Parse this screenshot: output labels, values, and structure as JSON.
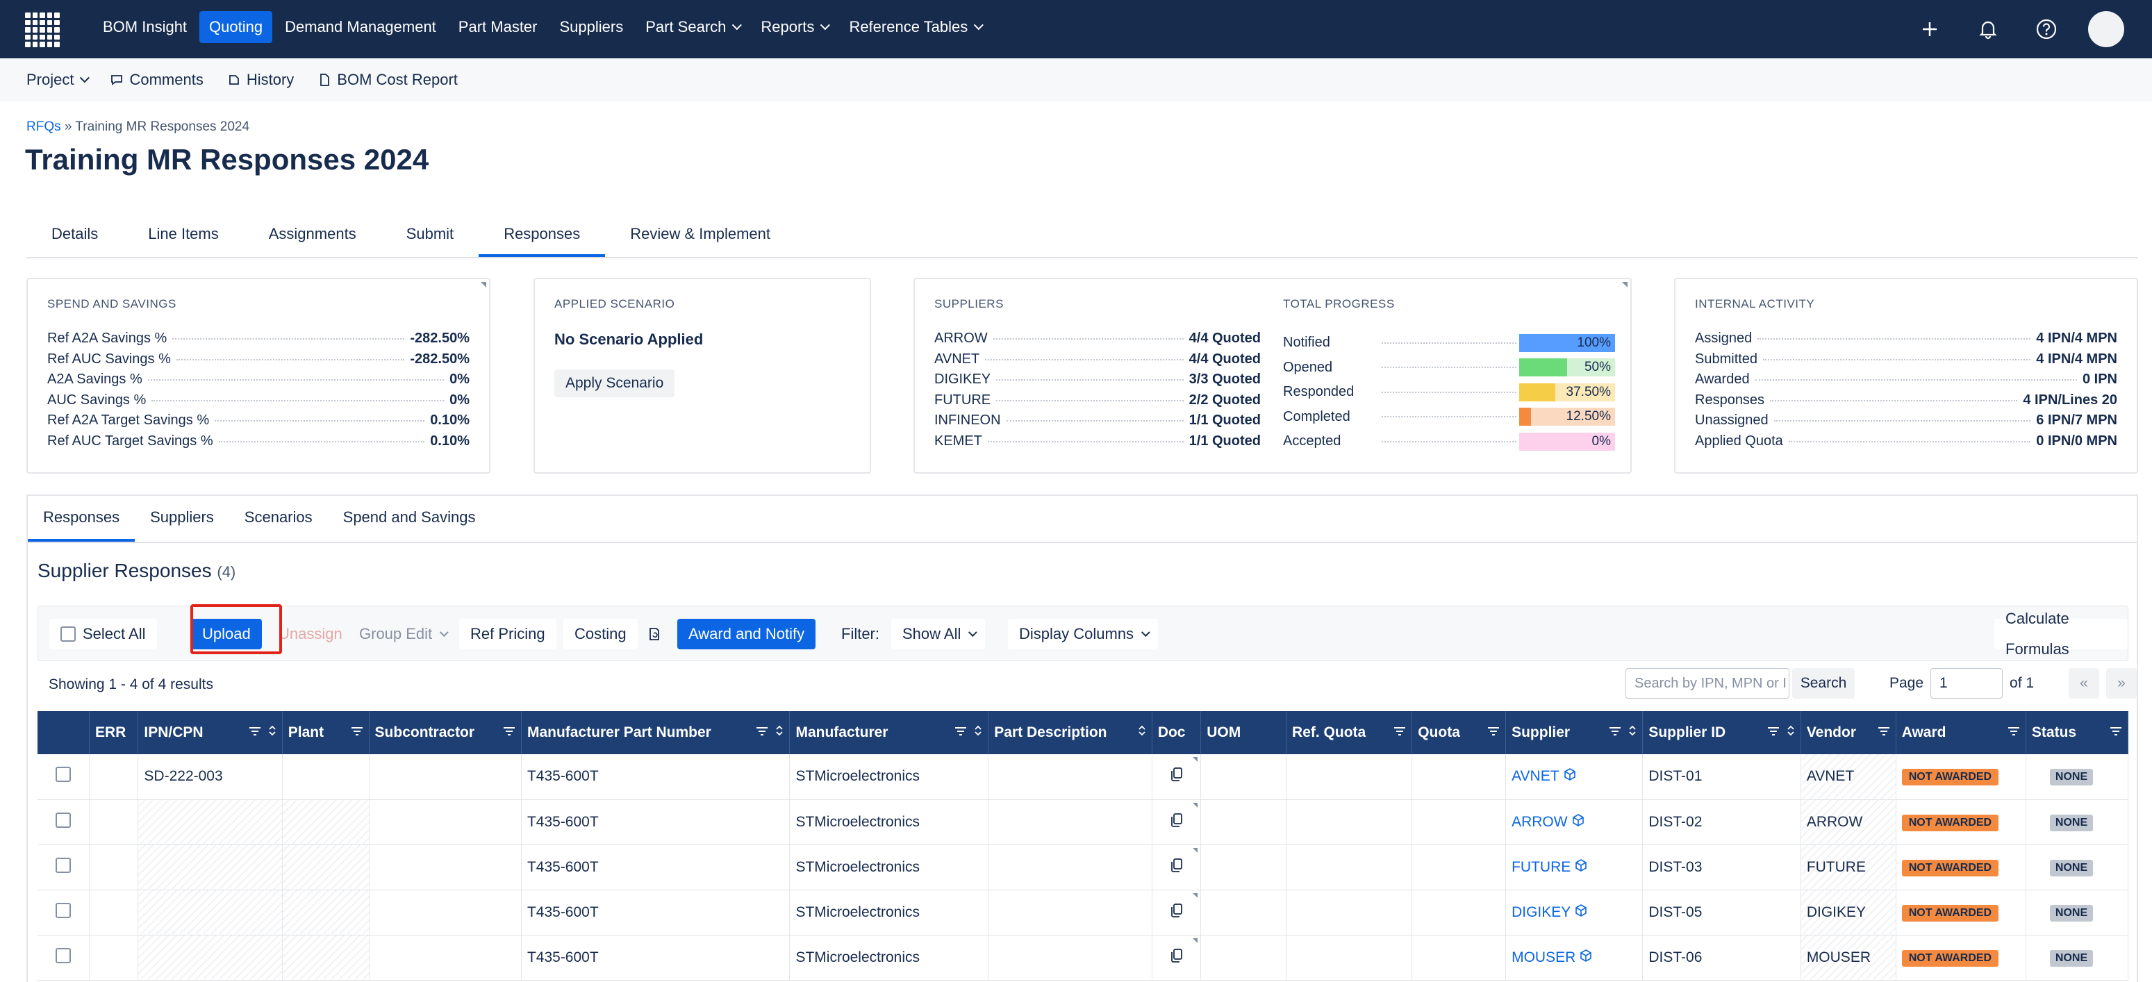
{
  "nav": {
    "items": [
      {
        "label": "BOM Insight",
        "active": false,
        "dropdown": false
      },
      {
        "label": "Quoting",
        "active": true,
        "dropdown": false
      },
      {
        "label": "Demand Management",
        "active": false,
        "dropdown": false
      },
      {
        "label": "Part Master",
        "active": false,
        "dropdown": false
      },
      {
        "label": "Suppliers",
        "active": false,
        "dropdown": false
      },
      {
        "label": "Part Search",
        "active": false,
        "dropdown": true
      },
      {
        "label": "Reports",
        "active": false,
        "dropdown": true
      },
      {
        "label": "Reference Tables",
        "active": false,
        "dropdown": true
      }
    ]
  },
  "subnav": {
    "project": "Project",
    "comments": "Comments",
    "history": "History",
    "bom_cost_report": "BOM Cost Report"
  },
  "breadcrumb": {
    "root": "RFQs",
    "sep": "»",
    "current": "Training MR Responses 2024"
  },
  "page_title": "Training MR Responses 2024",
  "tabs": [
    "Details",
    "Line Items",
    "Assignments",
    "Submit",
    "Responses",
    "Review & Implement"
  ],
  "spend": {
    "title": "SPEND AND SAVINGS",
    "rows": [
      {
        "k": "Ref A2A Savings %",
        "v": "-282.50%"
      },
      {
        "k": "Ref AUC Savings %",
        "v": "-282.50%"
      },
      {
        "k": "A2A Savings %",
        "v": "0%"
      },
      {
        "k": "AUC Savings %",
        "v": "0%"
      },
      {
        "k": "Ref A2A Target Savings %",
        "v": "0.10%"
      },
      {
        "k": "Ref AUC Target Savings %",
        "v": "0.10%"
      }
    ]
  },
  "scenario": {
    "title": "APPLIED SCENARIO",
    "status": "No Scenario Applied",
    "apply_label": "Apply Scenario"
  },
  "suppliers_card": {
    "title": "SUPPLIERS",
    "rows": [
      {
        "k": "ARROW",
        "v": "4/4 Quoted"
      },
      {
        "k": "AVNET",
        "v": "4/4 Quoted"
      },
      {
        "k": "DIGIKEY",
        "v": "3/3 Quoted"
      },
      {
        "k": "FUTURE",
        "v": "2/2 Quoted"
      },
      {
        "k": "INFINEON",
        "v": "1/1 Quoted"
      },
      {
        "k": "KEMET",
        "v": "1/1 Quoted"
      }
    ]
  },
  "progress": {
    "title": "TOTAL PROGRESS",
    "rows": [
      {
        "label": "Notified",
        "pct": "100%",
        "value": 1.0,
        "color": "#579dff",
        "bg": "#cce0ff"
      },
      {
        "label": "Opened",
        "pct": "50%",
        "value": 0.5,
        "color": "#6bdb7a",
        "bg": "#d3f1d5"
      },
      {
        "label": "Responded",
        "pct": "37.50%",
        "value": 0.375,
        "color": "#f5cd47",
        "bg": "#fbe9b7"
      },
      {
        "label": "Completed",
        "pct": "12.50%",
        "value": 0.125,
        "color": "#f38a3f",
        "bg": "#fbd9c0"
      },
      {
        "label": "Accepted",
        "pct": "0%",
        "value": 0.0,
        "color": "#e774bb",
        "bg": "#fdd0ec"
      }
    ]
  },
  "internal": {
    "title": "INTERNAL ACTIVITY",
    "rows": [
      {
        "k": "Assigned",
        "v": "4 IPN/4 MPN"
      },
      {
        "k": "Submitted",
        "v": "4 IPN/4 MPN"
      },
      {
        "k": "Awarded",
        "v": "0 IPN"
      },
      {
        "k": "Responses",
        "v": "4 IPN/Lines 20"
      },
      {
        "k": "Unassigned",
        "v": "6 IPN/7 MPN"
      },
      {
        "k": "Applied Quota",
        "v": "0 IPN/0 MPN"
      }
    ]
  },
  "lower_tabs": [
    "Responses",
    "Suppliers",
    "Scenarios",
    "Spend and Savings"
  ],
  "section": {
    "title": "Supplier Responses",
    "count": "(4)"
  },
  "toolbar": {
    "select_all": "Select All",
    "upload": "Upload",
    "unassign": "Unassign",
    "group_edit": "Group Edit",
    "ref_pricing": "Ref Pricing",
    "costing": "Costing",
    "award_notify": "Award and Notify",
    "filter_label": "Filter:",
    "filter_value": "Show All",
    "display_columns": "Display Columns",
    "calculate": "Calculate Formulas"
  },
  "results": {
    "showing": "Showing 1 - 4 of 4 results",
    "search_placeholder": "Search by IPN, MPN or I",
    "search_btn": "Search",
    "page_label": "Page",
    "page_value": "1",
    "of_label": "of 1",
    "first": "«",
    "last": "»"
  },
  "table": {
    "headers": [
      "ERR",
      "IPN/CPN",
      "Plant",
      "Subcontractor",
      "Manufacturer Part Number",
      "Manufacturer",
      "Part Description",
      "Doc",
      "UOM",
      "Ref. Quota",
      "Quota",
      "Supplier",
      "Supplier ID",
      "Vendor",
      "Award",
      "Status"
    ],
    "rows": [
      {
        "ipn": "SD-222-003",
        "mpn": "T435-600T",
        "mfr": "STMicroelectronics",
        "supplier": "AVNET",
        "supplier_id": "DIST-01",
        "vendor": "AVNET",
        "award": "NOT AWARDED",
        "status": "NONE"
      },
      {
        "ipn": "",
        "mpn": "T435-600T",
        "mfr": "STMicroelectronics",
        "supplier": "ARROW",
        "supplier_id": "DIST-02",
        "vendor": "ARROW",
        "award": "NOT AWARDED",
        "status": "NONE"
      },
      {
        "ipn": "",
        "mpn": "T435-600T",
        "mfr": "STMicroelectronics",
        "supplier": "FUTURE",
        "supplier_id": "DIST-03",
        "vendor": "FUTURE",
        "award": "NOT AWARDED",
        "status": "NONE"
      },
      {
        "ipn": "",
        "mpn": "T435-600T",
        "mfr": "STMicroelectronics",
        "supplier": "DIGIKEY",
        "supplier_id": "DIST-05",
        "vendor": "DIGIKEY",
        "award": "NOT AWARDED",
        "status": "NONE"
      },
      {
        "ipn": "",
        "mpn": "T435-600T",
        "mfr": "STMicroelectronics",
        "supplier": "MOUSER",
        "supplier_id": "DIST-06",
        "vendor": "MOUSER",
        "award": "NOT AWARDED",
        "status": "NONE"
      }
    ]
  }
}
